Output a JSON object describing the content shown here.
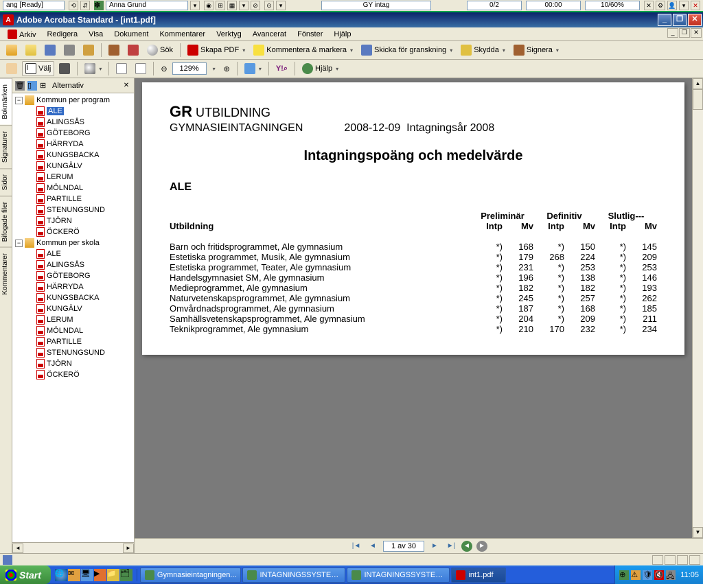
{
  "sysbar": {
    "left": "ang [Ready]",
    "user": "Anna Grund",
    "center": "GY intag",
    "count": "0/2",
    "time": "00:00",
    "pct": "10/60%"
  },
  "titlebar": {
    "title": "Adobe Acrobat Standard - [int1.pdf]"
  },
  "menu": [
    "Arkiv",
    "Redigera",
    "Visa",
    "Dokument",
    "Kommentarer",
    "Verktyg",
    "Avancerat",
    "Fönster",
    "Hjälp"
  ],
  "toolbar1": {
    "search": "Sök",
    "skapa": "Skapa PDF",
    "kommentera": "Kommentera & markera",
    "skicka": "Skicka för granskning",
    "skydda": "Skydda",
    "signera": "Signera"
  },
  "toolbar2": {
    "valj": "Välj",
    "zoom": "129%",
    "help": "Hjälp"
  },
  "sidetabs": [
    "Bokmärken",
    "Signaturer",
    "Sidor",
    "Bifogade filer",
    "Kommentarer"
  ],
  "bkhead": {
    "options": "Alternativ"
  },
  "bookmarks": {
    "groups": [
      {
        "label": "Kommun per program",
        "items": [
          "ALE",
          "ALINGSÅS",
          "GÖTEBORG",
          "HÄRRYDA",
          "KUNGSBACKA",
          "KUNGÄLV",
          "LERUM",
          "MÖLNDAL",
          "PARTILLE",
          "STENUNGSUND",
          "TJÖRN",
          "ÖCKERÖ"
        ]
      },
      {
        "label": "Kommun per skola",
        "items": [
          "ALE",
          "ALINGSÅS",
          "GÖTEBORG",
          "HÄRRYDA",
          "KUNGSBACKA",
          "KUNGÄLV",
          "LERUM",
          "MÖLNDAL",
          "PARTILLE",
          "STENUNGSUND",
          "TJÖRN",
          "ÖCKERÖ"
        ]
      }
    ]
  },
  "pdf": {
    "org_b": "GR",
    "org_rest": " UTBILDNING",
    "sub1": "GYMNASIEINTAGNINGEN",
    "date": "2008-12-09",
    "year": "Intagningsår 2008",
    "title": "Intagningspoäng och medelvärde",
    "region": "ALE",
    "col_label": "Utbildning",
    "col_groups": [
      "Preliminär",
      "Definitiv",
      "Slutlig---"
    ],
    "col_sub": [
      "Intp",
      "Mv",
      "Intp",
      "Mv",
      "Intp",
      "Mv"
    ],
    "rows": [
      {
        "name": "Barn och fritidsprogrammet,  Ale gymnasium",
        "v": [
          "*)",
          "168",
          "*)",
          "150",
          "*)",
          "145"
        ]
      },
      {
        "name": "Estetiska programmet, Musik,  Ale gymnasium",
        "v": [
          "*)",
          "179",
          "268",
          "224",
          "*)",
          "209"
        ]
      },
      {
        "name": "Estetiska programmet, Teater,  Ale gymnasium",
        "v": [
          "*)",
          "231",
          "*)",
          "253",
          "*)",
          "253"
        ]
      },
      {
        "name": "Handelsgymnasiet SM,  Ale gymnasium",
        "v": [
          "*)",
          "196",
          "*)",
          "138",
          "*)",
          "146"
        ]
      },
      {
        "name": "Medieprogrammet,  Ale gymnasium",
        "v": [
          "*)",
          "182",
          "*)",
          "182",
          "*)",
          "193"
        ]
      },
      {
        "name": "Naturvetenskapsprogrammet,  Ale gymnasium",
        "v": [
          "*)",
          "245",
          "*)",
          "257",
          "*)",
          "262"
        ]
      },
      {
        "name": "Omvårdnadsprogrammet,  Ale gymnasium",
        "v": [
          "*)",
          "187",
          "*)",
          "168",
          "*)",
          "185"
        ]
      },
      {
        "name": "Samhällsvetenskapsprogrammet,  Ale gymnasium",
        "v": [
          "*)",
          "204",
          "*)",
          "209",
          "*)",
          "211"
        ]
      },
      {
        "name": "Teknikprogrammet,  Ale gymnasium",
        "v": [
          "*)",
          "210",
          "170",
          "232",
          "*)",
          "234"
        ]
      }
    ]
  },
  "pagenav": {
    "text": "1 av 30"
  },
  "taskbar": {
    "start": "Start",
    "tasks": [
      {
        "label": "Gymnasieintagningen...",
        "cls": "db"
      },
      {
        "label": "INTAGNINGSSYSTEM ...",
        "cls": "db"
      },
      {
        "label": "INTAGNINGSSYSTEM ...",
        "cls": "db"
      },
      {
        "label": "int1.pdf",
        "cls": "pdf",
        "active": true
      }
    ],
    "clock": "11:05"
  }
}
